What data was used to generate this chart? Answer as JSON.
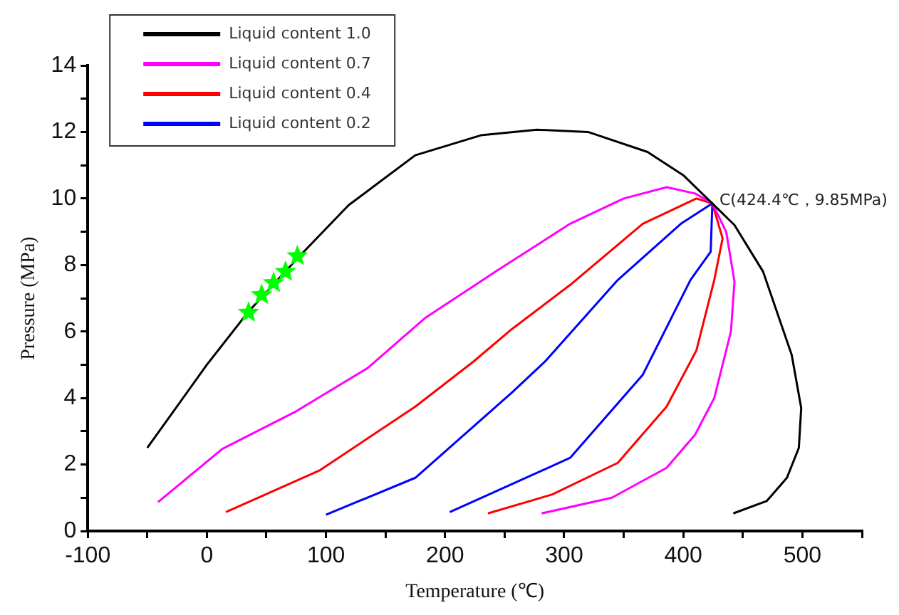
{
  "chart_data": {
    "type": "line",
    "xlabel": "Temperature (℃)",
    "ylabel": "Pressure (MPa)",
    "xlim": [
      -100,
      550
    ],
    "xticks": [
      -100,
      {
        "value": -50,
        "label": null
      },
      0,
      {
        "value": 50,
        "label": null
      },
      100,
      {
        "value": 150,
        "label": null
      },
      200,
      {
        "value": 250,
        "label": null
      },
      300,
      {
        "value": 350,
        "label": null
      },
      400,
      {
        "value": 450,
        "label": null
      },
      500,
      {
        "value": 550,
        "label": null
      }
    ],
    "ylim": [
      0,
      14
    ],
    "yticks": [
      0,
      {
        "value": 1,
        "label": null
      },
      2,
      {
        "value": 3,
        "label": null
      },
      4,
      {
        "value": 5,
        "label": null
      },
      6,
      {
        "value": 7,
        "label": null
      },
      8,
      {
        "value": 9,
        "label": null
      },
      10,
      {
        "value": 11,
        "label": null
      },
      12,
      {
        "value": 13,
        "label": null
      },
      14
    ],
    "grid": false,
    "legend": "top left",
    "marker": "none",
    "line_style": "solid",
    "annotations": [
      {
        "text": "C(424.4℃，9.85MPa)",
        "x": 424.4,
        "y": 9.85
      }
    ],
    "series": [
      {
        "name": "Liquid content 1.0",
        "color": "#000000",
        "x": [
          -50,
          0,
          35,
          76,
          119,
          175,
          230,
          277,
          320,
          370,
          400,
          424.4,
          443,
          467,
          491,
          499,
          497,
          487,
          470,
          442
        ],
        "values": [
          2.5,
          5.0,
          6.6,
          8.2,
          9.8,
          11.3,
          11.9,
          12.07,
          12.0,
          11.4,
          10.7,
          9.85,
          9.2,
          7.8,
          5.3,
          3.7,
          2.5,
          1.6,
          0.9,
          0.53
        ]
      },
      {
        "name": "Liquid content 0.7",
        "color": "#ff00ff",
        "x": [
          -41,
          13,
          75,
          135,
          183,
          244,
          305,
          350,
          386,
          410,
          424.4,
          436,
          443,
          440,
          426,
          410,
          386,
          340,
          281
        ],
        "values": [
          0.87,
          2.47,
          3.6,
          4.9,
          6.4,
          7.84,
          9.24,
          10.0,
          10.34,
          10.15,
          9.85,
          9.0,
          7.5,
          6.0,
          4.0,
          2.9,
          1.9,
          1.0,
          0.53
        ]
      },
      {
        "name": "Liquid content 0.4",
        "color": "#ff0000",
        "x": [
          16,
          95,
          175,
          224,
          256,
          305,
          366,
          411,
          424.4,
          433,
          426,
          411,
          386,
          345,
          290,
          236
        ],
        "values": [
          0.57,
          1.83,
          3.74,
          5.1,
          6.07,
          7.4,
          9.24,
          10.0,
          9.85,
          8.8,
          7.55,
          5.43,
          3.74,
          2.05,
          1.1,
          0.53
        ]
      },
      {
        "name": "Liquid content 0.2",
        "color": "#0000ff",
        "x": [
          100,
          175,
          256,
          284,
          345,
          398,
          424.4,
          423,
          406,
          366,
          305,
          204
        ],
        "values": [
          0.49,
          1.6,
          4.16,
          5.1,
          7.55,
          9.24,
          9.85,
          8.4,
          7.55,
          4.7,
          2.2,
          0.57
        ]
      },
      {
        "type": "scatter",
        "marker": "star",
        "color": "#00ff00",
        "x": [
          35,
          46,
          56,
          66,
          76
        ],
        "values": [
          6.57,
          7.1,
          7.46,
          7.8,
          8.27
        ]
      }
    ]
  }
}
